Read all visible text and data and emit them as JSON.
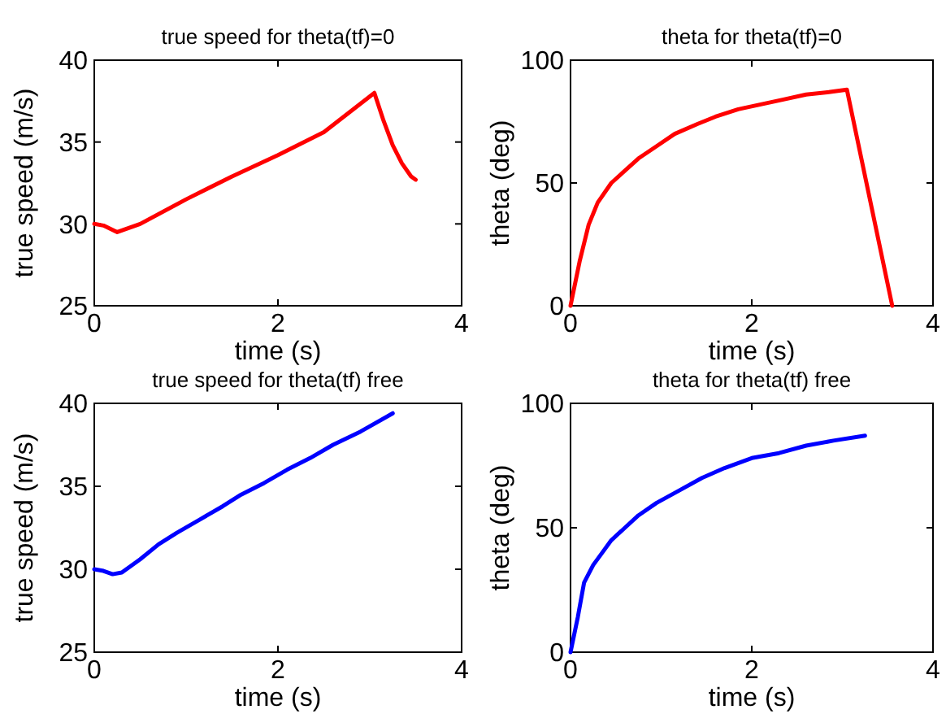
{
  "chart_data": [
    {
      "type": "line",
      "title": "true speed for theta(tf)=0",
      "xlabel": "time (s)",
      "ylabel": "true speed (m/s)",
      "xlim": [
        0,
        4
      ],
      "ylim": [
        25,
        40
      ],
      "xticks": [
        0,
        2,
        4
      ],
      "yticks": [
        25,
        30,
        35,
        40
      ],
      "series": [
        {
          "color": "#ff0000",
          "x": [
            0,
            0.1,
            0.25,
            0.5,
            1,
            1.5,
            2,
            2.5,
            3.05,
            3.15,
            3.25,
            3.35,
            3.45,
            3.5
          ],
          "values": [
            30,
            29.9,
            29.5,
            30,
            31.5,
            32.9,
            34.2,
            35.6,
            38,
            36.3,
            34.8,
            33.7,
            32.9,
            32.7
          ]
        }
      ]
    },
    {
      "type": "line",
      "title": "theta for theta(tf)=0",
      "xlabel": "time (s)",
      "ylabel": "theta (deg)",
      "xlim": [
        0,
        4
      ],
      "ylim": [
        0,
        100
      ],
      "xticks": [
        0,
        2,
        4
      ],
      "yticks": [
        0,
        50,
        100
      ],
      "series": [
        {
          "color": "#ff0000",
          "x": [
            0,
            0.1,
            0.2,
            0.3,
            0.45,
            0.6,
            0.75,
            0.95,
            1.15,
            1.4,
            1.6,
            1.85,
            2.1,
            2.35,
            2.6,
            2.85,
            3.05,
            3.55
          ],
          "values": [
            0,
            18,
            33,
            42,
            50,
            55,
            60,
            65,
            70,
            74,
            77,
            80,
            82,
            84,
            86,
            87,
            88,
            0
          ]
        }
      ]
    },
    {
      "type": "line",
      "title": "true speed for theta(tf) free",
      "xlabel": "time (s)",
      "ylabel": "true speed (m/s)",
      "xlim": [
        0,
        4
      ],
      "ylim": [
        25,
        40
      ],
      "xticks": [
        0,
        2,
        4
      ],
      "yticks": [
        25,
        30,
        35,
        40
      ],
      "series": [
        {
          "color": "#0000ff",
          "x": [
            0,
            0.1,
            0.2,
            0.3,
            0.5,
            0.7,
            0.9,
            1.15,
            1.4,
            1.6,
            1.85,
            2.1,
            2.35,
            2.6,
            2.9,
            3.25
          ],
          "values": [
            30,
            29.9,
            29.7,
            29.8,
            30.6,
            31.5,
            32.2,
            33,
            33.8,
            34.5,
            35.2,
            36,
            36.7,
            37.5,
            38.3,
            39.4
          ]
        }
      ]
    },
    {
      "type": "line",
      "title": "theta for theta(tf) free",
      "xlabel": "time (s)",
      "ylabel": "theta (deg)",
      "xlim": [
        0,
        4
      ],
      "ylim": [
        0,
        100
      ],
      "xticks": [
        0,
        2,
        4
      ],
      "yticks": [
        0,
        50,
        100
      ],
      "series": [
        {
          "color": "#0000ff",
          "x": [
            0,
            0.08,
            0.15,
            0.25,
            0.35,
            0.45,
            0.6,
            0.75,
            0.95,
            1.2,
            1.45,
            1.7,
            2,
            2.3,
            2.6,
            2.9,
            3.25
          ],
          "values": [
            0,
            14,
            28,
            35,
            40,
            45,
            50,
            55,
            60,
            65,
            70,
            74,
            78,
            80,
            83,
            85,
            87
          ]
        }
      ]
    }
  ]
}
